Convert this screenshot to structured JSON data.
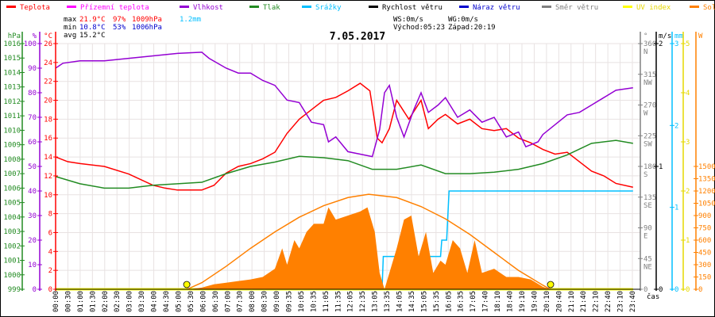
{
  "legend": [
    {
      "label": "Teplota",
      "color": "#ff0000"
    },
    {
      "label": "Přízemní teplota",
      "color": "#ff00ff"
    },
    {
      "label": "Vlhkost",
      "color": "#9400d3"
    },
    {
      "label": "Tlak",
      "color": "#228b22"
    },
    {
      "label": "Srážky",
      "color": "#00bfff"
    },
    {
      "label": "Rychlost větru",
      "color": "#000000"
    },
    {
      "label": "Náraz větru",
      "color": "#0000cd"
    },
    {
      "label": "Směr větru",
      "color": "#808080"
    },
    {
      "label": "UV index",
      "color": "#ffff00"
    },
    {
      "label": "Solar",
      "color": "#ff8000"
    }
  ],
  "stats": {
    "max_label": "max",
    "max_temp": "21.9°C",
    "max_hum": "97%",
    "max_press": "1009hPa",
    "rain": "1.2mm",
    "min_label": "min",
    "min_temp": "10.8°C",
    "min_hum": "53%",
    "min_press": "1006hPa",
    "avg_label": "avg",
    "avg_temp": "15.2°C",
    "ws": "WS:0m/s",
    "wg": "WG:0m/s",
    "sunrise": "Východ:05:23",
    "sunset": "Západ:20:19"
  },
  "chart_data": {
    "type": "line",
    "title": "7.05.2017",
    "xlabel": "čas",
    "x_range_hours": [
      0,
      24
    ],
    "x_tick_labels": [
      "00:00",
      "00:30",
      "01:00",
      "01:30",
      "02:00",
      "02:30",
      "03:00",
      "03:30",
      "04:00",
      "04:30",
      "05:00",
      "05:30",
      "06:00",
      "06:30",
      "07:00",
      "07:30",
      "08:00",
      "08:30",
      "09:00",
      "09:35",
      "10:05",
      "10:35",
      "11:05",
      "11:35",
      "12:05",
      "12:35",
      "13:05",
      "13:35",
      "14:05",
      "14:35",
      "15:05",
      "15:35",
      "16:05",
      "16:35",
      "17:05",
      "17:40",
      "18:10",
      "18:40",
      "19:10",
      "19:40",
      "20:10",
      "20:40",
      "21:10",
      "21:40",
      "22:10",
      "22:40",
      "23:10",
      "23:40"
    ],
    "axes": {
      "pressure": {
        "unit": "hPa",
        "range": [
          999,
          1016
        ],
        "ticks": [
          "1016",
          "1015",
          "1014",
          "1013",
          "1012",
          "1011",
          "1010",
          "1009",
          "1008",
          "1007",
          "1006",
          "1005",
          "1004",
          "1003",
          "1002",
          "1001",
          "1000",
          "999"
        ]
      },
      "humidity": {
        "unit": "%",
        "range": [
          0,
          100
        ],
        "ticks": [
          "100",
          "90",
          "80",
          "70",
          "60",
          "50",
          "40",
          "30",
          "20",
          "10",
          "0"
        ]
      },
      "temperature": {
        "unit": "°C",
        "range": [
          0,
          26
        ],
        "ticks": [
          "26",
          "24",
          "22",
          "20",
          "18",
          "16",
          "14",
          "12",
          "10",
          "8",
          "6",
          "4",
          "2",
          "0"
        ]
      },
      "direction": {
        "unit": "°",
        "range": [
          0,
          360
        ],
        "ticks": [
          [
            "360",
            "N"
          ],
          [
            "315",
            "NW"
          ],
          [
            "270",
            "W"
          ],
          [
            "225",
            "SW"
          ],
          [
            "180",
            "S"
          ],
          [
            "135",
            "SE"
          ],
          [
            "90",
            "E"
          ],
          [
            "45",
            "NE"
          ],
          [
            "0",
            ""
          ]
        ]
      },
      "wind": {
        "unit": "m/s",
        "range": [
          0,
          2
        ],
        "ticks": [
          "2",
          "1",
          "0"
        ]
      },
      "rain": {
        "unit": "mm",
        "range": [
          0,
          3
        ],
        "ticks": [
          "3",
          "2",
          "1",
          "0"
        ]
      },
      "uv": {
        "unit": "",
        "range": [
          0,
          5
        ],
        "ticks": [
          "5",
          "4",
          "3",
          "2",
          "1",
          "0"
        ]
      },
      "solar": {
        "unit": "W",
        "range": [
          0,
          3000
        ],
        "ticks": [
          "1500",
          "1350",
          "1200",
          "1050",
          "900",
          "750",
          "600",
          "450",
          "300",
          "150",
          "0"
        ]
      }
    },
    "series": [
      {
        "name": "Teplota",
        "axis": "temperature",
        "color": "#ff0000",
        "points": [
          [
            0,
            14
          ],
          [
            0.5,
            13.5
          ],
          [
            1,
            13.3
          ],
          [
            2,
            13
          ],
          [
            3,
            12.2
          ],
          [
            4,
            11
          ],
          [
            4.5,
            10.7
          ],
          [
            5,
            10.5
          ],
          [
            6,
            10.5
          ],
          [
            6.5,
            11
          ],
          [
            7,
            12.3
          ],
          [
            7.5,
            13
          ],
          [
            8,
            13.3
          ],
          [
            8.5,
            13.8
          ],
          [
            9,
            14.5
          ],
          [
            9.5,
            16.5
          ],
          [
            10,
            18
          ],
          [
            10.5,
            19
          ],
          [
            11,
            20
          ],
          [
            11.5,
            20.3
          ],
          [
            12,
            21
          ],
          [
            12.5,
            21.8
          ],
          [
            12.9,
            21
          ],
          [
            13.2,
            16
          ],
          [
            13.4,
            15.5
          ],
          [
            13.7,
            17
          ],
          [
            14,
            20
          ],
          [
            14.5,
            18
          ],
          [
            15,
            20
          ],
          [
            15.3,
            17
          ],
          [
            15.7,
            18
          ],
          [
            16,
            18.5
          ],
          [
            16.5,
            17.5
          ],
          [
            17,
            18
          ],
          [
            17.5,
            17
          ],
          [
            18,
            16.8
          ],
          [
            18.5,
            17
          ],
          [
            19,
            16
          ],
          [
            19.5,
            15.5
          ],
          [
            20,
            14.8
          ],
          [
            20.5,
            14.3
          ],
          [
            21,
            14.5
          ],
          [
            21.5,
            13.5
          ],
          [
            22,
            12.5
          ],
          [
            22.5,
            12
          ],
          [
            23,
            11.2
          ],
          [
            23.7,
            10.8
          ]
        ]
      },
      {
        "name": "Vlhkost",
        "axis": "humidity",
        "color": "#9400d3",
        "points": [
          [
            0,
            90
          ],
          [
            0.3,
            92
          ],
          [
            1,
            93
          ],
          [
            2,
            93
          ],
          [
            3,
            94
          ],
          [
            4,
            95
          ],
          [
            5,
            96
          ],
          [
            6,
            96.5
          ],
          [
            6.3,
            94
          ],
          [
            7,
            90
          ],
          [
            7.5,
            88
          ],
          [
            8,
            88
          ],
          [
            8.5,
            85
          ],
          [
            9,
            83
          ],
          [
            9.5,
            77
          ],
          [
            10,
            76
          ],
          [
            10.5,
            68
          ],
          [
            11,
            67
          ],
          [
            11.2,
            60
          ],
          [
            11.5,
            62
          ],
          [
            12,
            56
          ],
          [
            12.5,
            55
          ],
          [
            13,
            54
          ],
          [
            13.3,
            65
          ],
          [
            13.5,
            80
          ],
          [
            13.7,
            83
          ],
          [
            14,
            70
          ],
          [
            14.3,
            62
          ],
          [
            14.7,
            73
          ],
          [
            15,
            80
          ],
          [
            15.3,
            72
          ],
          [
            15.7,
            75
          ],
          [
            16,
            78
          ],
          [
            16.5,
            70
          ],
          [
            17,
            73
          ],
          [
            17.5,
            68
          ],
          [
            18,
            70
          ],
          [
            18.5,
            62
          ],
          [
            19,
            64
          ],
          [
            19.3,
            58
          ],
          [
            19.8,
            60
          ],
          [
            20,
            63
          ],
          [
            20.5,
            67
          ],
          [
            21,
            71
          ],
          [
            21.5,
            72
          ],
          [
            22,
            75
          ],
          [
            22.5,
            78
          ],
          [
            23,
            81
          ],
          [
            23.7,
            82
          ]
        ]
      },
      {
        "name": "Tlak",
        "axis": "pressure",
        "color": "#228b22",
        "points": [
          [
            0,
            1006.8
          ],
          [
            1,
            1006.3
          ],
          [
            2,
            1006
          ],
          [
            3,
            1006
          ],
          [
            4,
            1006.2
          ],
          [
            5,
            1006.3
          ],
          [
            6,
            1006.4
          ],
          [
            7,
            1007
          ],
          [
            8,
            1007.5
          ],
          [
            9,
            1007.8
          ],
          [
            10,
            1008.2
          ],
          [
            11,
            1008.1
          ],
          [
            12,
            1007.9
          ],
          [
            13,
            1007.3
          ],
          [
            14,
            1007.3
          ],
          [
            15,
            1007.6
          ],
          [
            16,
            1007
          ],
          [
            17,
            1007
          ],
          [
            18,
            1007.1
          ],
          [
            19,
            1007.3
          ],
          [
            20,
            1007.7
          ],
          [
            21,
            1008.3
          ],
          [
            22,
            1009.1
          ],
          [
            23,
            1009.3
          ],
          [
            23.7,
            1009.1
          ]
        ]
      },
      {
        "name": "Srážky",
        "axis": "rain",
        "color": "#00bfff",
        "points": [
          [
            13.4,
            0
          ],
          [
            13.45,
            0.4
          ],
          [
            15.8,
            0.4
          ],
          [
            15.85,
            0.6
          ],
          [
            16.05,
            0.6
          ],
          [
            16.15,
            1.2
          ],
          [
            23.7,
            1.2
          ]
        ]
      },
      {
        "name": "Rychlost větru",
        "axis": "wind",
        "color": "#000000",
        "points": [
          [
            0,
            0
          ],
          [
            23.7,
            0
          ]
        ]
      },
      {
        "name": "UV index",
        "axis": "uv",
        "color": "#ffff00",
        "points": [
          [
            0,
            0
          ],
          [
            23.7,
            0
          ]
        ]
      },
      {
        "name": "Solar theoretical",
        "axis": "solar",
        "color": "#ff8000",
        "points": [
          [
            5.4,
            0
          ],
          [
            6,
            80
          ],
          [
            7,
            280
          ],
          [
            8,
            500
          ],
          [
            9,
            700
          ],
          [
            10,
            880
          ],
          [
            11,
            1020
          ],
          [
            12,
            1120
          ],
          [
            12.85,
            1160
          ],
          [
            14,
            1120
          ],
          [
            15,
            1010
          ],
          [
            16,
            860
          ],
          [
            17,
            670
          ],
          [
            18,
            450
          ],
          [
            19,
            230
          ],
          [
            20,
            50
          ],
          [
            20.3,
            0
          ]
        ]
      },
      {
        "name": "Solar",
        "axis": "solar",
        "color": "#ff8000",
        "fill": true,
        "points": [
          [
            5.5,
            0
          ],
          [
            6,
            20
          ],
          [
            6.5,
            60
          ],
          [
            7,
            80
          ],
          [
            7.5,
            100
          ],
          [
            8,
            120
          ],
          [
            8.5,
            150
          ],
          [
            9,
            250
          ],
          [
            9.3,
            500
          ],
          [
            9.5,
            300
          ],
          [
            9.8,
            600
          ],
          [
            10,
            500
          ],
          [
            10.3,
            700
          ],
          [
            10.6,
            800
          ],
          [
            11,
            800
          ],
          [
            11.2,
            1000
          ],
          [
            11.5,
            850
          ],
          [
            12,
            900
          ],
          [
            12.5,
            950
          ],
          [
            12.8,
            1000
          ],
          [
            13.1,
            700
          ],
          [
            13.3,
            200
          ],
          [
            13.5,
            0
          ],
          [
            13.8,
            300
          ],
          [
            14,
            500
          ],
          [
            14.3,
            850
          ],
          [
            14.6,
            900
          ],
          [
            14.9,
            400
          ],
          [
            15.2,
            700
          ],
          [
            15.5,
            200
          ],
          [
            15.8,
            350
          ],
          [
            16,
            300
          ],
          [
            16.3,
            600
          ],
          [
            16.6,
            500
          ],
          [
            16.9,
            200
          ],
          [
            17.2,
            600
          ],
          [
            17.5,
            200
          ],
          [
            18,
            250
          ],
          [
            18.5,
            150
          ],
          [
            19,
            150
          ],
          [
            19.5,
            120
          ],
          [
            20,
            30
          ],
          [
            20.3,
            0
          ]
        ]
      }
    ],
    "sun_markers_hours": [
      5.383,
      20.317
    ]
  }
}
